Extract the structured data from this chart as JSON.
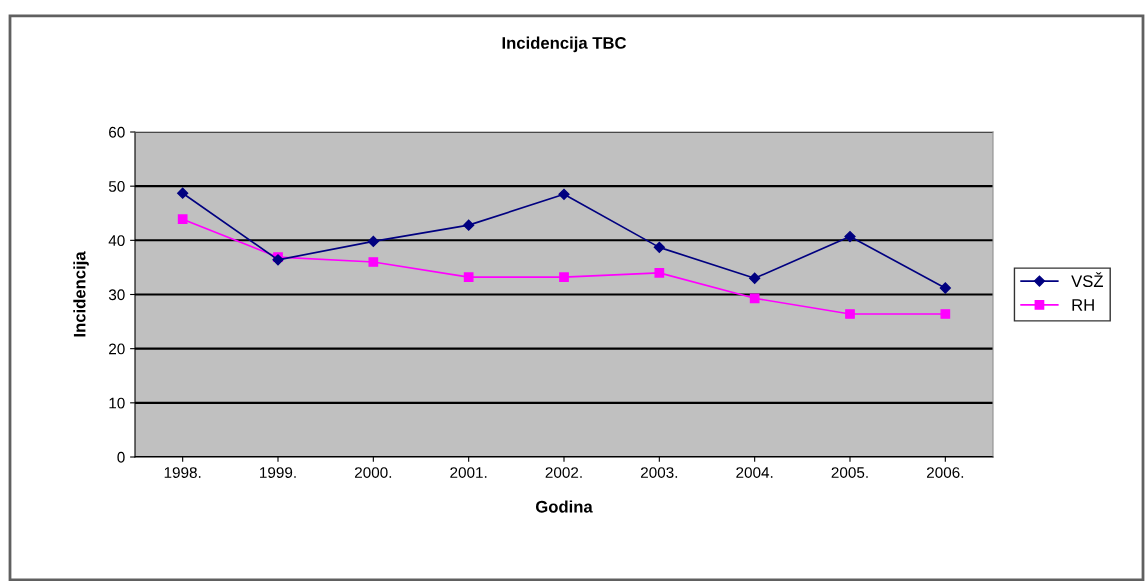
{
  "chart_data": {
    "type": "line",
    "title": "Incidencija TBC",
    "xlabel": "Godina",
    "ylabel": "Incidencija",
    "categories": [
      "1998.",
      "1999.",
      "2000.",
      "2001.",
      "2002.",
      "2003.",
      "2004.",
      "2005.",
      "2006."
    ],
    "series": [
      {
        "name": "VSŽ",
        "color": "#000080",
        "marker": "diamond",
        "values": [
          48.7,
          36.4,
          39.8,
          42.8,
          48.5,
          38.7,
          33.0,
          40.7,
          31.2
        ]
      },
      {
        "name": "RH",
        "color": "#ff00ff",
        "marker": "square",
        "values": [
          43.9,
          36.9,
          36.0,
          33.2,
          33.2,
          34.0,
          29.3,
          26.4,
          26.4
        ]
      }
    ],
    "ylim": [
      0,
      60
    ],
    "yticks": [
      0,
      10,
      20,
      30,
      40,
      50,
      60
    ],
    "grid": "y",
    "legend": "right",
    "line_style": "solid"
  }
}
